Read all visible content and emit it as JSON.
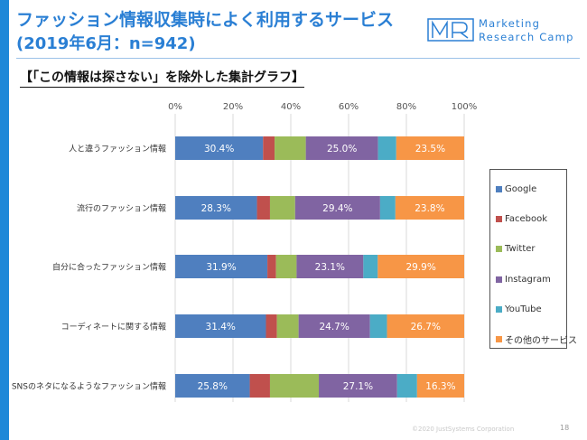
{
  "header": {
    "title_line1": "ファッション情報収集時によく利用するサービス",
    "title_line2": "(2019年6月：n=942)",
    "subtitle": "【「この情報は探さない」を除外した集計グラフ】"
  },
  "logo": {
    "mark": "MR",
    "line1": "Marketing",
    "line2": "Research Camp"
  },
  "footer": {
    "copyright": "©2020 JustSystems Corporation",
    "page_number": "18"
  },
  "colors": {
    "accent": "#1e88d8",
    "title": "#2a7fd4"
  },
  "chart_data": {
    "type": "bar",
    "orientation": "horizontal",
    "stacked": "percent",
    "x_ticks": [
      "0%",
      "20%",
      "40%",
      "60%",
      "80%",
      "100%"
    ],
    "xlim": [
      0,
      100
    ],
    "grid": true,
    "legend_position": "right",
    "categories": [
      "人と違うファッション情報",
      "流行のファッション情報",
      "自分に合ったファッション情報",
      "コーディネートに関する情報",
      "SNSのネタになるようなファッション情報"
    ],
    "series": [
      {
        "name": "Google",
        "color": "#4f7fbf",
        "values": [
          30.4,
          28.3,
          31.9,
          31.4,
          25.8
        ],
        "labels": [
          "30.4%",
          "28.3%",
          "31.9%",
          "31.4%",
          "25.8%"
        ]
      },
      {
        "name": "Facebook",
        "color": "#c0504d",
        "values": [
          4.0,
          4.5,
          3.0,
          3.8,
          7.0
        ]
      },
      {
        "name": "Twitter",
        "color": "#9bbb59",
        "values": [
          10.8,
          8.7,
          7.1,
          7.5,
          16.9
        ]
      },
      {
        "name": "Instagram",
        "color": "#8064a2",
        "values": [
          25.0,
          29.4,
          23.1,
          24.7,
          27.1
        ],
        "labels": [
          "25.0%",
          "29.4%",
          "23.1%",
          "24.7%",
          "27.1%"
        ]
      },
      {
        "name": "YouTube",
        "color": "#4bacc6",
        "values": [
          6.3,
          5.3,
          5.0,
          5.9,
          6.9
        ]
      },
      {
        "name": "その他のサービス",
        "color": "#f79646",
        "values": [
          23.5,
          23.8,
          29.9,
          26.7,
          16.3
        ],
        "labels": [
          "23.5%",
          "23.8%",
          "29.9%",
          "26.7%",
          "16.3%"
        ]
      }
    ]
  }
}
